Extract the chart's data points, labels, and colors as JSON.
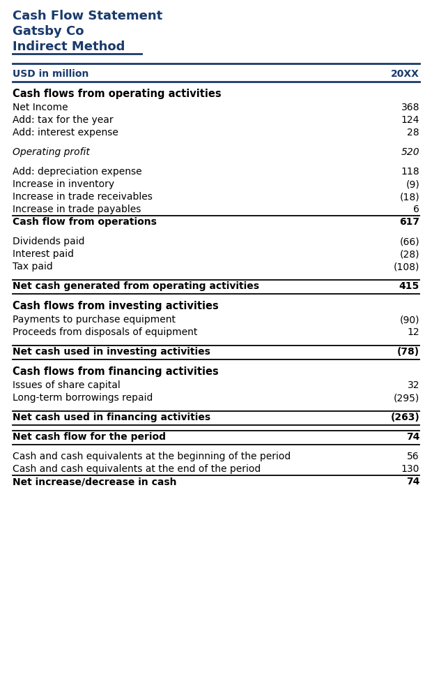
{
  "title_line1": "Cash Flow Statement",
  "title_line2": "Gatsby Co",
  "title_line3": "Indirect Method",
  "header_left": "USD in million",
  "header_right": "20XX",
  "dark_blue": "#1a3a6b",
  "black": "#000000",
  "bg": "#ffffff",
  "rows": [
    {
      "label": "Cash flows from operating activities",
      "value": "",
      "style": "section_header",
      "line_above": false,
      "line_below": false
    },
    {
      "label": "Net Income",
      "value": "368",
      "style": "normal",
      "line_above": false,
      "line_below": false
    },
    {
      "label": "Add: tax for the year",
      "value": "124",
      "style": "normal",
      "line_above": false,
      "line_below": false
    },
    {
      "label": "Add: interest expense",
      "value": "28",
      "style": "normal",
      "line_above": false,
      "line_below": false
    },
    {
      "label": "",
      "value": "",
      "style": "spacer",
      "line_above": false,
      "line_below": false
    },
    {
      "label": "Operating profit",
      "value": "520",
      "style": "italic",
      "line_above": false,
      "line_below": false
    },
    {
      "label": "",
      "value": "",
      "style": "spacer",
      "line_above": false,
      "line_below": false
    },
    {
      "label": "Add: depreciation expense",
      "value": "118",
      "style": "normal",
      "line_above": false,
      "line_below": false
    },
    {
      "label": "Increase in inventory",
      "value": "(9)",
      "style": "normal",
      "line_above": false,
      "line_below": false
    },
    {
      "label": "Increase in trade receivables",
      "value": "(18)",
      "style": "normal",
      "line_above": false,
      "line_below": false
    },
    {
      "label": "Increase in trade payables",
      "value": "6",
      "style": "normal",
      "line_above": false,
      "line_below": false
    },
    {
      "label": "Cash flow from operations",
      "value": "617",
      "style": "bold",
      "line_above": true,
      "line_below": false
    },
    {
      "label": "",
      "value": "",
      "style": "spacer",
      "line_above": false,
      "line_below": false
    },
    {
      "label": "Dividends paid",
      "value": "(66)",
      "style": "normal",
      "line_above": false,
      "line_below": false
    },
    {
      "label": "Interest paid",
      "value": "(28)",
      "style": "normal",
      "line_above": false,
      "line_below": false
    },
    {
      "label": "Tax paid",
      "value": "(108)",
      "style": "normal",
      "line_above": false,
      "line_below": false
    },
    {
      "label": "",
      "value": "",
      "style": "spacer",
      "line_above": false,
      "line_below": false
    },
    {
      "label": "Net cash generated from operating activities",
      "value": "415",
      "style": "bold",
      "line_above": true,
      "line_below": true
    },
    {
      "label": "",
      "value": "",
      "style": "spacer",
      "line_above": false,
      "line_below": false
    },
    {
      "label": "Cash flows from investing activities",
      "value": "",
      "style": "section_header",
      "line_above": false,
      "line_below": false
    },
    {
      "label": "Payments to purchase equipment",
      "value": "(90)",
      "style": "normal",
      "line_above": false,
      "line_below": false
    },
    {
      "label": "Proceeds from disposals of equipment",
      "value": "12",
      "style": "normal",
      "line_above": false,
      "line_below": false
    },
    {
      "label": "",
      "value": "",
      "style": "spacer",
      "line_above": false,
      "line_below": false
    },
    {
      "label": "Net cash used in investing activities",
      "value": "(78)",
      "style": "bold",
      "line_above": true,
      "line_below": true
    },
    {
      "label": "",
      "value": "",
      "style": "spacer",
      "line_above": false,
      "line_below": false
    },
    {
      "label": "Cash flows from financing activities",
      "value": "",
      "style": "section_header",
      "line_above": false,
      "line_below": false
    },
    {
      "label": "Issues of share capital",
      "value": "32",
      "style": "normal",
      "line_above": false,
      "line_below": false
    },
    {
      "label": "Long-term borrowings repaid",
      "value": "(295)",
      "style": "normal",
      "line_above": false,
      "line_below": false
    },
    {
      "label": "",
      "value": "",
      "style": "spacer",
      "line_above": false,
      "line_below": false
    },
    {
      "label": "Net cash used in financing activities",
      "value": "(263)",
      "style": "bold",
      "line_above": true,
      "line_below": true
    },
    {
      "label": "",
      "value": "",
      "style": "spacer",
      "line_above": false,
      "line_below": false
    },
    {
      "label": "Net cash flow for the period",
      "value": "74",
      "style": "bold",
      "line_above": true,
      "line_below": true
    },
    {
      "label": "",
      "value": "",
      "style": "spacer",
      "line_above": false,
      "line_below": false
    },
    {
      "label": "Cash and cash equivalents at the beginning of the period",
      "value": "56",
      "style": "normal",
      "line_above": false,
      "line_below": false
    },
    {
      "label": "Cash and cash equivalents at the end of the period",
      "value": "130",
      "style": "normal",
      "line_above": false,
      "line_below": false
    },
    {
      "label": "Net increase/decrease in cash",
      "value": "74",
      "style": "bold",
      "line_above": true,
      "line_below": false
    }
  ]
}
